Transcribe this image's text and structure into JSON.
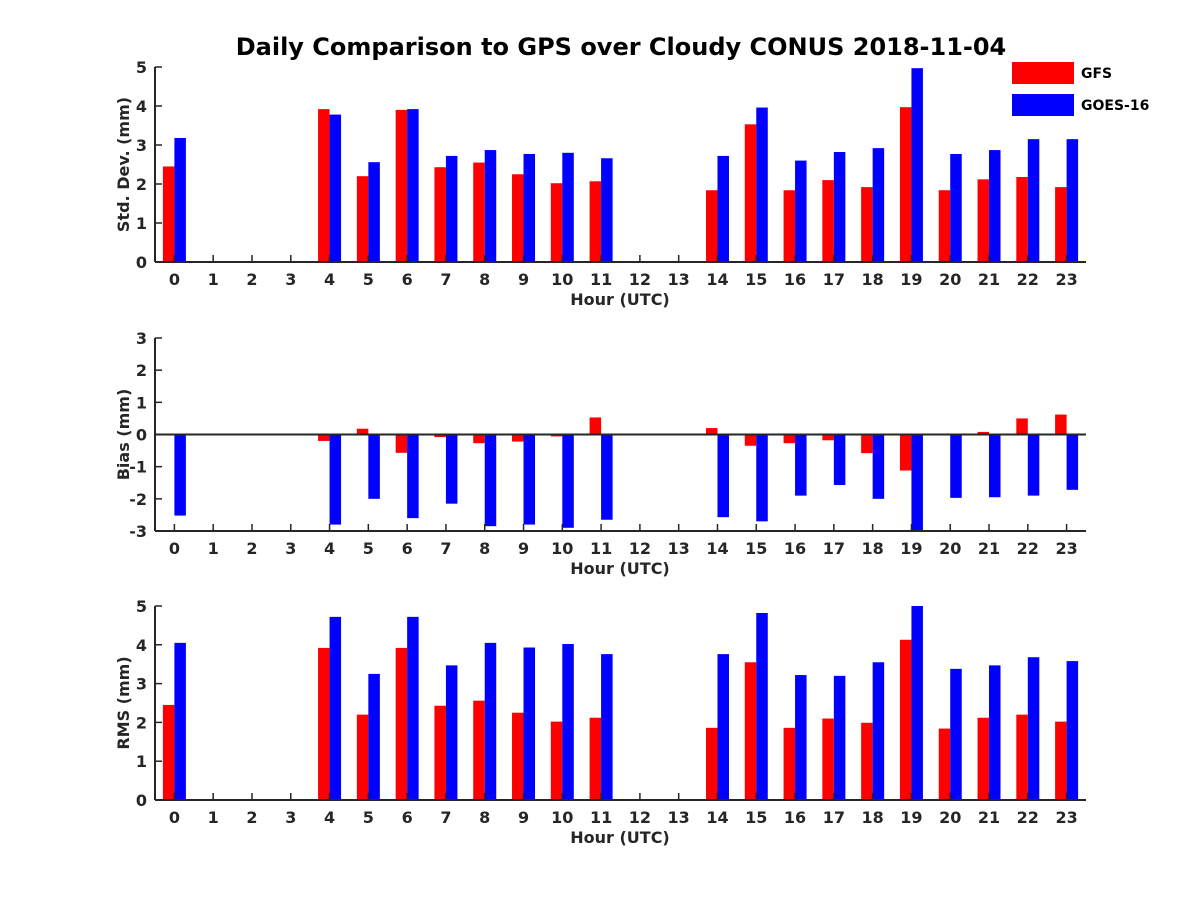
{
  "title": "Daily Comparison to GPS over Cloudy CONUS 2018-11-04",
  "colors": {
    "GFS": "#ff0000",
    "GOES-16": "#0000ff"
  },
  "legend": [
    "GFS",
    "GOES-16"
  ],
  "chart_data": [
    {
      "type": "bar",
      "xlabel": "Hour (UTC)",
      "ylabel": "Std. Dev. (mm)",
      "ylim": [
        0,
        5
      ],
      "yticks": [
        0,
        1,
        2,
        3,
        4,
        5
      ],
      "categories": [
        "0",
        "1",
        "2",
        "3",
        "4",
        "5",
        "6",
        "7",
        "8",
        "9",
        "10",
        "11",
        "12",
        "13",
        "14",
        "15",
        "16",
        "17",
        "18",
        "19",
        "20",
        "21",
        "22",
        "23"
      ],
      "series": [
        {
          "name": "GFS",
          "values": [
            2.45,
            null,
            null,
            null,
            3.92,
            2.2,
            3.9,
            2.43,
            2.55,
            2.25,
            2.02,
            2.07,
            null,
            null,
            1.84,
            3.53,
            1.84,
            2.1,
            1.92,
            3.97,
            1.84,
            2.12,
            2.18,
            1.92
          ]
        },
        {
          "name": "GOES-16",
          "values": [
            3.18,
            null,
            null,
            null,
            3.78,
            2.56,
            3.92,
            2.72,
            2.87,
            2.77,
            2.8,
            2.66,
            null,
            null,
            2.72,
            3.96,
            2.6,
            2.82,
            2.92,
            4.97,
            2.77,
            2.87,
            3.15,
            3.15
          ]
        }
      ]
    },
    {
      "type": "bar",
      "xlabel": "Hour (UTC)",
      "ylabel": "Bias (mm)",
      "ylim": [
        -3,
        3
      ],
      "yticks": [
        -3,
        -2,
        -1,
        0,
        1,
        2,
        3
      ],
      "categories": [
        "0",
        "1",
        "2",
        "3",
        "4",
        "5",
        "6",
        "7",
        "8",
        "9",
        "10",
        "11",
        "12",
        "13",
        "14",
        "15",
        "16",
        "17",
        "18",
        "19",
        "20",
        "21",
        "22",
        "23"
      ],
      "series": [
        {
          "name": "GFS",
          "values": [
            0.0,
            null,
            null,
            null,
            -0.2,
            0.18,
            -0.57,
            -0.08,
            -0.27,
            -0.22,
            -0.06,
            0.53,
            null,
            null,
            0.2,
            -0.35,
            -0.27,
            -0.18,
            -0.58,
            -1.12,
            -0.03,
            0.08,
            0.5,
            0.62
          ]
        },
        {
          "name": "GOES-16",
          "values": [
            -2.52,
            null,
            null,
            null,
            -2.8,
            -2.0,
            -2.6,
            -2.15,
            -2.85,
            -2.8,
            -2.9,
            -2.65,
            null,
            null,
            -2.57,
            -2.7,
            -1.9,
            -1.57,
            -2.0,
            -2.97,
            -1.97,
            -1.95,
            -1.9,
            -1.72
          ]
        }
      ]
    },
    {
      "type": "bar",
      "xlabel": "Hour (UTC)",
      "ylabel": "RMS (mm)",
      "ylim": [
        0,
        5
      ],
      "yticks": [
        0,
        1,
        2,
        3,
        4,
        5
      ],
      "categories": [
        "0",
        "1",
        "2",
        "3",
        "4",
        "5",
        "6",
        "7",
        "8",
        "9",
        "10",
        "11",
        "12",
        "13",
        "14",
        "15",
        "16",
        "17",
        "18",
        "19",
        "20",
        "21",
        "22",
        "23"
      ],
      "series": [
        {
          "name": "GFS",
          "values": [
            2.45,
            null,
            null,
            null,
            3.92,
            2.2,
            3.92,
            2.43,
            2.56,
            2.25,
            2.02,
            2.12,
            null,
            null,
            1.86,
            3.55,
            1.86,
            2.1,
            1.99,
            4.13,
            1.84,
            2.12,
            2.2,
            2.02
          ]
        },
        {
          "name": "GOES-16",
          "values": [
            4.05,
            null,
            null,
            null,
            4.72,
            3.25,
            4.72,
            3.47,
            4.05,
            3.93,
            4.02,
            3.76,
            null,
            null,
            3.76,
            4.82,
            3.22,
            3.2,
            3.55,
            5.0,
            3.38,
            3.47,
            3.68,
            3.58
          ]
        }
      ]
    }
  ]
}
